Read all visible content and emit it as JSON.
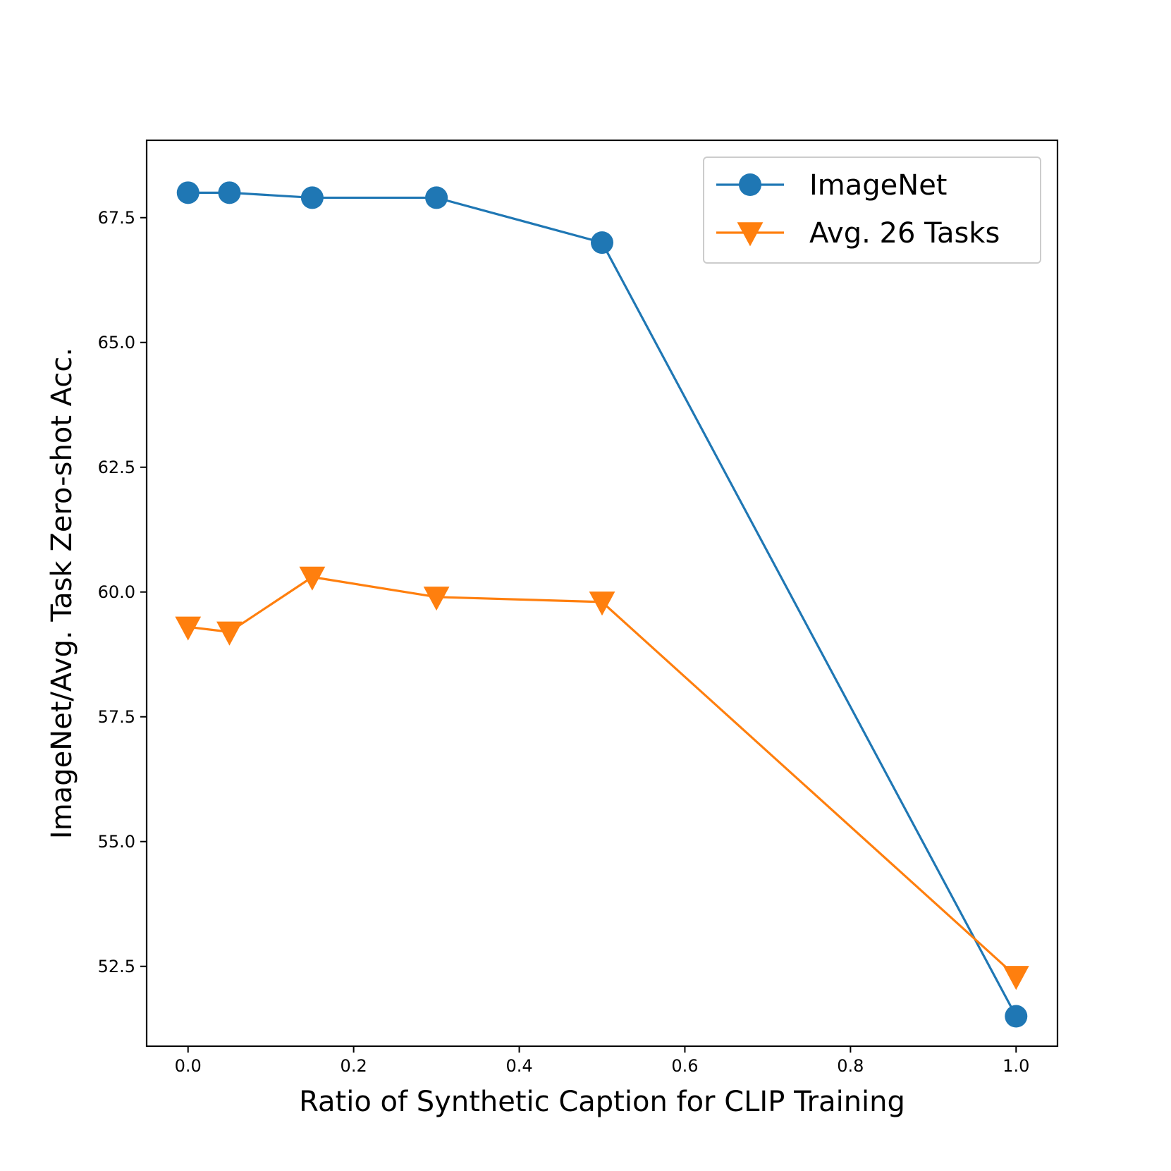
{
  "chart_data": {
    "type": "line",
    "title": "",
    "xlabel": "Ratio of Synthetic Caption for CLIP Training",
    "ylabel": "ImageNet/Avg. Task Zero-shot Acc.",
    "xlim": [
      -0.05,
      1.05
    ],
    "ylim": [
      50.9,
      69.05
    ],
    "xticks": [
      0.0,
      0.2,
      0.4,
      0.6,
      0.8,
      1.0
    ],
    "xtick_labels": [
      "0.0",
      "0.2",
      "0.4",
      "0.6",
      "0.8",
      "1.0"
    ],
    "yticks": [
      52.5,
      55.0,
      57.5,
      60.0,
      62.5,
      65.0,
      67.5
    ],
    "ytick_labels": [
      "52.5",
      "55.0",
      "57.5",
      "60.0",
      "62.5",
      "65.0",
      "67.5"
    ],
    "grid": false,
    "legend_position": "top-right",
    "x": [
      0.0,
      0.05,
      0.15,
      0.3,
      0.5,
      1.0
    ],
    "series": [
      {
        "name": "ImageNet",
        "color": "#1f77b4",
        "marker": "circle",
        "values": [
          68.0,
          68.0,
          67.9,
          67.9,
          67.0,
          51.5
        ]
      },
      {
        "name": "Avg. 26 Tasks",
        "color": "#ff7f0e",
        "marker": "triangle-down",
        "values": [
          59.3,
          59.2,
          60.3,
          59.9,
          59.8,
          52.3
        ]
      }
    ]
  }
}
